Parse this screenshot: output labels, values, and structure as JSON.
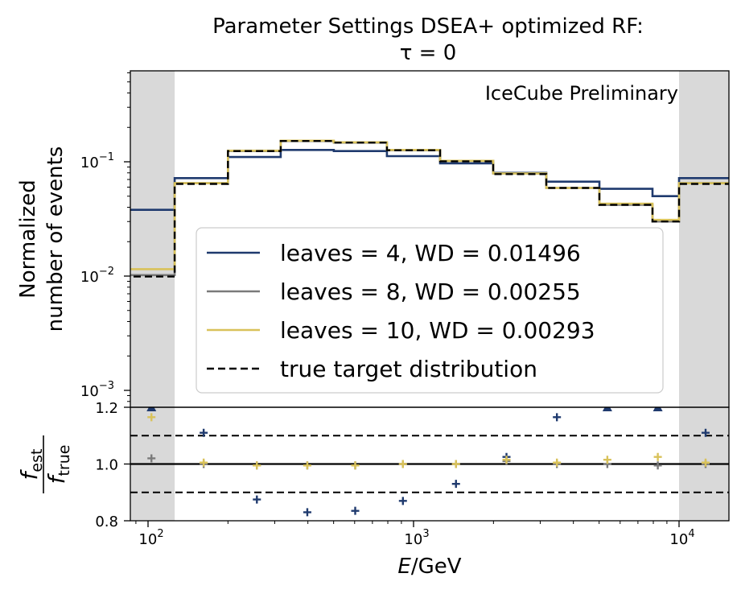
{
  "title_line1": "Parameter Settings DSEA+ optimized RF:",
  "title_line2": "τ = 0",
  "watermark": "IceCube Preliminary",
  "colors": {
    "leaves4": "#1f3a6e",
    "leaves8": "#7a7a7a",
    "leaves10": "#d9c25a",
    "true_target": "#000000",
    "shade": "#d9d9d9",
    "watermark": "#ff0000"
  },
  "chart_data": [
    {
      "type": "line",
      "step": true,
      "xscale": "log",
      "yscale": "log",
      "ylabel_line1": "Normalized",
      "ylabel_line2": "number of events",
      "xlim": [
        80,
        16000
      ],
      "ylim": [
        0.0008,
        1.0
      ],
      "grid": false,
      "legend_position": "center-right",
      "x_ticks": [
        {
          "value": 100,
          "base": "10",
          "exp": "2"
        },
        {
          "value": 1000,
          "base": "10",
          "exp": "3"
        },
        {
          "value": 10000,
          "base": "10",
          "exp": "4"
        }
      ],
      "y_ticks": [
        {
          "value": 0.001,
          "base": "10",
          "exp": "−3"
        },
        {
          "value": 0.01,
          "base": "10",
          "exp": "−2"
        },
        {
          "value": 0.1,
          "base": "10",
          "exp": "−1"
        }
      ],
      "shaded_x_ranges": [
        [
          80,
          126
        ],
        [
          10000,
          16000
        ]
      ],
      "bin_edges": [
        80,
        126,
        200,
        316,
        501,
        794,
        1259,
        1995,
        3162,
        5012,
        7943,
        10000,
        16000
      ],
      "series": [
        {
          "name": "leaves = 4, WD = 0.01496",
          "color_key": "leaves4",
          "style": "solid",
          "values": [
            0.038,
            0.072,
            0.11,
            0.127,
            0.124,
            0.112,
            0.097,
            0.08,
            0.067,
            0.058,
            0.05,
            0.072
          ]
        },
        {
          "name": "leaves = 8, WD = 0.00255",
          "color_key": "leaves8",
          "style": "solid",
          "values": [
            0.0102,
            0.065,
            0.124,
            0.152,
            0.147,
            0.126,
            0.102,
            0.079,
            0.059,
            0.042,
            0.03,
            0.065
          ]
        },
        {
          "name": "leaves = 10, WD = 0.00293",
          "color_key": "leaves10",
          "style": "solid",
          "values": [
            0.0115,
            0.065,
            0.125,
            0.153,
            0.148,
            0.127,
            0.102,
            0.079,
            0.059,
            0.043,
            0.031,
            0.065
          ]
        },
        {
          "name": "true target distribution",
          "color_key": "true_target",
          "style": "dashed",
          "values": [
            0.0099,
            0.064,
            0.124,
            0.152,
            0.147,
            0.126,
            0.101,
            0.078,
            0.059,
            0.042,
            0.03,
            0.064
          ]
        }
      ]
    },
    {
      "type": "scatter",
      "xscale": "log",
      "ylabel_num": "est",
      "ylabel_den": "true",
      "xlabel_var": "E",
      "xlabel_unit": "/GeV",
      "ylim": [
        0.8,
        1.2
      ],
      "y_ticks": [
        "0.8",
        "1.0",
        "1.2"
      ],
      "hlines": [
        {
          "y": 1.0,
          "style": "solid"
        },
        {
          "y": 1.1,
          "style": "dashed"
        },
        {
          "y": 0.9,
          "style": "dashed"
        }
      ],
      "x": [
        103,
        162,
        257,
        398,
        603,
        912,
        1445,
        2239,
        3467,
        5370,
        8318,
        12589
      ],
      "series": [
        {
          "name": "leaves = 4, WD = 0.01496",
          "color_key": "leaves4",
          "values": [
            1.2,
            1.11,
            0.875,
            0.83,
            0.835,
            0.87,
            0.93,
            1.025,
            1.165,
            1.2,
            1.2,
            1.11
          ],
          "clipped_above": [
            true,
            false,
            false,
            false,
            false,
            false,
            false,
            false,
            false,
            true,
            true,
            false
          ]
        },
        {
          "name": "leaves = 8, WD = 0.00255",
          "color_key": "leaves8",
          "values": [
            1.02,
            1.0,
            0.995,
            0.995,
            0.995,
            1.0,
            1.0,
            1.01,
            1.0,
            1.0,
            0.995,
            1.0
          ]
        },
        {
          "name": "leaves = 10, WD = 0.00293",
          "color_key": "leaves10",
          "values": [
            1.165,
            1.005,
            0.995,
            0.995,
            0.995,
            1.0,
            1.0,
            1.015,
            1.005,
            1.015,
            1.025,
            1.005
          ]
        }
      ]
    }
  ]
}
